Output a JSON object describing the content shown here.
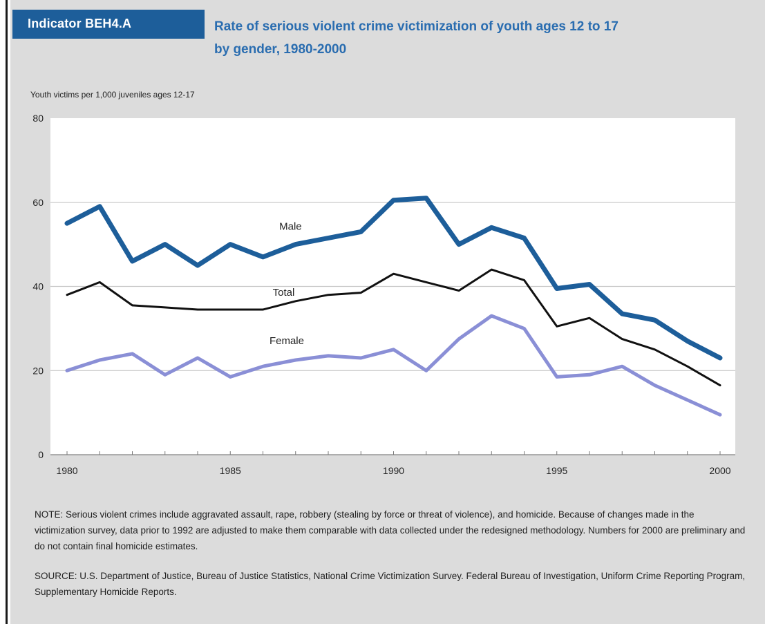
{
  "indicator": "Indicator BEH4.A",
  "title_line1": "Rate of serious violent crime victimization of youth ages 12 to 17",
  "title_line2": "by gender, 1980-2000",
  "note": "NOTE: Serious violent crimes include aggravated assault, rape, robbery (stealing by force or threat of violence), and homicide.  Because of changes made in the victimization survey, data prior to 1992 are adjusted to make them comparable with data collected under the redesigned methodology.  Numbers for 2000 are preliminary and do not contain final homicide estimates.",
  "source": "SOURCE: U.S. Department of Justice, Bureau of Justice Statistics, National Crime Victimization Survey. Federal Bureau of Investigation, Uniform Crime Reporting Program, Supplementary Homicide Reports.",
  "chart_data": {
    "type": "line",
    "title": "Rate of serious violent crime victimization of youth ages 12 to 17 by gender, 1980-2000",
    "xlabel": "",
    "ylabel": "Youth victims per 1,000 juveniles ages 12-17",
    "ylim": [
      0,
      80
    ],
    "xlim": [
      1980,
      2000
    ],
    "yticks": [
      0,
      20,
      40,
      60,
      80
    ],
    "xticks": [
      1980,
      1985,
      1990,
      1995,
      2000
    ],
    "grid": "horizontal",
    "x": [
      1980,
      1981,
      1982,
      1983,
      1984,
      1985,
      1986,
      1987,
      1988,
      1989,
      1990,
      1991,
      1992,
      1993,
      1994,
      1995,
      1996,
      1997,
      1998,
      1999,
      2000
    ],
    "series": [
      {
        "name": "Male",
        "color": "#1d5e9a",
        "values": [
          55,
          59,
          46,
          50,
          45,
          50,
          47,
          50,
          51.5,
          53,
          60.5,
          61,
          50,
          54,
          51.5,
          39.5,
          40.5,
          33.5,
          32,
          27,
          23
        ]
      },
      {
        "name": "Total",
        "color": "#111111",
        "values": [
          38,
          41,
          35.5,
          35,
          34.5,
          34.5,
          34.5,
          36.5,
          38,
          38.5,
          43,
          41,
          39,
          44,
          41.5,
          30.5,
          32.5,
          27.5,
          25,
          21,
          16.5
        ]
      },
      {
        "name": "Female",
        "color": "#8a8fd6",
        "values": [
          20,
          22.5,
          24,
          19,
          23,
          18.5,
          21,
          22.5,
          23.5,
          23,
          25,
          20,
          27.5,
          33,
          30,
          18.5,
          19,
          21,
          16.5,
          13,
          9.5
        ]
      }
    ]
  }
}
